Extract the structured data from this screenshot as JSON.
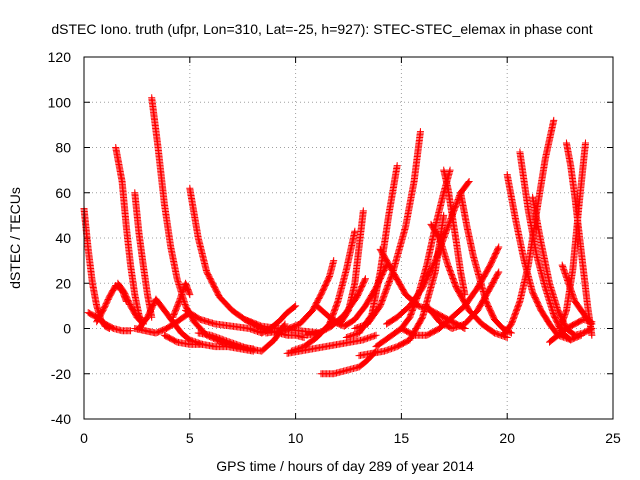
{
  "chart_data": {
    "type": "scatter",
    "title": "dSTEC Iono. truth (ufpr, Lon=310, Lat=-25, h=927): STEC-STEC_elemax in phase cont",
    "xlabel": "GPS time / hours of day 289 of year 2014",
    "ylabel": "dSTEC  / TECUs",
    "xlim": [
      0,
      25
    ],
    "ylim": [
      -40,
      120
    ],
    "xticks": [
      0,
      5,
      10,
      15,
      20,
      25
    ],
    "yticks": [
      -40,
      -20,
      0,
      20,
      40,
      60,
      80,
      100,
      120
    ],
    "grid": true,
    "marker": "+",
    "series_color": "#ff0000",
    "series": [
      {
        "x": [
          0.0,
          0.2,
          0.4,
          0.6,
          0.8,
          1.0,
          1.2
        ],
        "y": [
          53,
          35,
          20,
          10,
          4,
          1,
          0
        ]
      },
      {
        "x": [
          0.2,
          0.6,
          1.0,
          1.4,
          1.8,
          2.2
        ],
        "y": [
          7,
          5,
          2,
          0,
          -1,
          -1
        ]
      },
      {
        "x": [
          0.6,
          0.9,
          1.2,
          1.5,
          1.8,
          2.0
        ],
        "y": [
          3,
          8,
          14,
          19,
          17,
          12
        ]
      },
      {
        "x": [
          1.5,
          1.8,
          2.0,
          2.2,
          2.4,
          2.6,
          2.8
        ],
        "y": [
          80,
          65,
          45,
          28,
          15,
          6,
          2
        ]
      },
      {
        "x": [
          1.6,
          1.9,
          2.2,
          2.5,
          2.8
        ],
        "y": [
          20,
          16,
          10,
          5,
          2
        ]
      },
      {
        "x": [
          2.4,
          2.6,
          2.8,
          3.0,
          3.2
        ],
        "y": [
          60,
          42,
          28,
          15,
          5
        ]
      },
      {
        "x": [
          2.4,
          2.9,
          3.4,
          3.9,
          4.4,
          5.0
        ],
        "y": [
          0,
          -1,
          -2,
          0,
          3,
          7
        ]
      },
      {
        "x": [
          2.6,
          3.0,
          3.4,
          3.8,
          4.2,
          4.6,
          5.0,
          5.6
        ],
        "y": [
          0,
          5,
          13,
          8,
          3,
          -2,
          -5,
          -7
        ]
      },
      {
        "x": [
          3.2,
          3.5,
          3.8,
          4.1,
          4.4,
          4.8,
          5.2,
          5.8,
          6.5,
          7.2,
          8.0
        ],
        "y": [
          102,
          80,
          55,
          36,
          22,
          10,
          3,
          -3,
          -6,
          -8,
          -9
        ]
      },
      {
        "x": [
          3.8,
          4.4,
          5.0,
          5.6,
          6.2,
          6.8,
          7.4,
          8.0
        ],
        "y": [
          -3,
          -6,
          -7,
          -7,
          -8,
          -8,
          -9,
          -10
        ]
      },
      {
        "x": [
          4.2,
          4.5,
          4.8,
          5.0
        ],
        "y": [
          5,
          12,
          20,
          15
        ]
      },
      {
        "x": [
          5.0,
          5.4,
          5.8,
          6.4,
          7.0,
          7.6,
          8.4,
          9.2,
          10.2,
          11.2
        ],
        "y": [
          62,
          40,
          25,
          14,
          8,
          4,
          1,
          0,
          -1,
          -2
        ]
      },
      {
        "x": [
          4.8,
          5.5,
          6.2,
          7.0,
          7.8,
          8.4
        ],
        "y": [
          8,
          4,
          2,
          1,
          0,
          -2
        ]
      },
      {
        "x": [
          5.4,
          6.0,
          6.6,
          7.2,
          7.8,
          8.4,
          9.0,
          9.5
        ],
        "y": [
          -2,
          -3,
          -5,
          -7,
          -9,
          -10,
          -5,
          2
        ]
      },
      {
        "x": [
          7.6,
          8.0,
          8.4,
          8.8,
          9.2,
          9.6,
          10.0,
          10.4
        ],
        "y": [
          4,
          2,
          0,
          -1,
          -2,
          -3,
          -3,
          -4
        ]
      },
      {
        "x": [
          8.4,
          8.8,
          9.2,
          9.6,
          10.0
        ],
        "y": [
          -2,
          0,
          3,
          7,
          10
        ]
      },
      {
        "x": [
          9.6,
          10.2,
          10.8,
          11.4,
          12.0,
          12.6,
          13.2,
          13.8
        ],
        "y": [
          -11,
          -10,
          -9,
          -8,
          -7,
          -6,
          -5,
          -3
        ]
      },
      {
        "x": [
          8.6,
          9.4,
          10.2,
          10.8,
          11.2,
          11.6,
          11.8
        ],
        "y": [
          -2,
          -1,
          2,
          8,
          15,
          23,
          30
        ]
      },
      {
        "x": [
          9.8,
          10.4,
          11.0,
          11.6,
          12.0,
          12.4,
          12.8
        ],
        "y": [
          -10,
          -8,
          -4,
          2,
          12,
          26,
          43
        ]
      },
      {
        "x": [
          10.5,
          11.1,
          11.7,
          12.3,
          12.9,
          13.3
        ],
        "y": [
          -3,
          -2,
          1,
          6,
          14,
          22
        ]
      },
      {
        "x": [
          11.2,
          11.8,
          12.2,
          12.6,
          13.0,
          13.4,
          13.8
        ],
        "y": [
          -20,
          -20,
          -19,
          -18,
          -17,
          -14,
          -10
        ]
      },
      {
        "x": [
          11.0,
          11.6,
          12.1,
          12.5,
          12.8,
          13.2
        ],
        "y": [
          10,
          5,
          2,
          8,
          20,
          52
        ]
      },
      {
        "x": [
          11.8,
          12.3,
          12.8,
          13.3,
          13.8,
          14.3
        ],
        "y": [
          3,
          1,
          4,
          10,
          18,
          28
        ]
      },
      {
        "x": [
          12.4,
          13.0,
          13.6,
          14.0,
          14.4,
          14.8
        ],
        "y": [
          -4,
          -2,
          6,
          25,
          50,
          72
        ]
      },
      {
        "x": [
          12.8,
          13.4,
          14.0,
          14.6,
          15.2,
          15.6,
          15.9
        ],
        "y": [
          0,
          2,
          10,
          25,
          45,
          65,
          87
        ]
      },
      {
        "x": [
          13.0,
          13.6,
          14.2,
          14.8,
          15.4,
          16.0,
          16.6,
          17.0
        ],
        "y": [
          -12,
          -11,
          -10,
          -8,
          -5,
          5,
          25,
          50
        ]
      },
      {
        "x": [
          13.8,
          14.4,
          15.0,
          15.4,
          15.8,
          16.2,
          16.6,
          17.0,
          17.3
        ],
        "y": [
          -8,
          -4,
          0,
          5,
          15,
          28,
          45,
          60,
          70
        ]
      },
      {
        "x": [
          14.0,
          14.6,
          15.2,
          15.8,
          16.4,
          17.0,
          17.6,
          18.0
        ],
        "y": [
          35,
          25,
          15,
          10,
          8,
          5,
          2,
          0
        ]
      },
      {
        "x": [
          14.3,
          14.8,
          15.4,
          16.0,
          16.6,
          17.2,
          17.8,
          18.2
        ],
        "y": [
          2,
          5,
          10,
          18,
          30,
          45,
          60,
          65
        ]
      },
      {
        "x": [
          15.0,
          15.6,
          16.2,
          16.8,
          17.4,
          18.0,
          18.6,
          19.2,
          19.6
        ],
        "y": [
          0,
          -3,
          -3,
          0,
          5,
          10,
          18,
          28,
          36
        ]
      },
      {
        "x": [
          16.2,
          16.8,
          17.4,
          18.0,
          18.6,
          19.2,
          19.6
        ],
        "y": [
          10,
          3,
          0,
          2,
          8,
          18,
          25
        ]
      },
      {
        "x": [
          16.4,
          16.8,
          17.2,
          17.6,
          18.2,
          18.8,
          19.4,
          20.0
        ],
        "y": [
          46,
          40,
          28,
          18,
          8,
          2,
          -2,
          -4
        ]
      },
      {
        "x": [
          17.0,
          17.2,
          17.4,
          17.6,
          17.8,
          18.0
        ],
        "y": [
          70,
          62,
          50,
          38,
          25,
          15
        ]
      },
      {
        "x": [
          17.8,
          18.1,
          18.4,
          18.7,
          19.0,
          19.4,
          19.8,
          20.2
        ],
        "y": [
          60,
          45,
          32,
          22,
          12,
          4,
          0,
          -2
        ]
      },
      {
        "x": [
          19.8,
          20.2,
          20.6,
          21.0,
          21.4,
          21.8,
          22.2
        ],
        "y": [
          -3,
          2,
          12,
          28,
          52,
          75,
          92
        ]
      },
      {
        "x": [
          20.0,
          20.4,
          20.8,
          21.2,
          21.6,
          22.0,
          22.4,
          23.0
        ],
        "y": [
          68,
          48,
          30,
          16,
          8,
          2,
          -3,
          -5
        ]
      },
      {
        "x": [
          20.6,
          21.0,
          21.4,
          21.8,
          22.2,
          22.6,
          23.0,
          23.5
        ],
        "y": [
          78,
          52,
          32,
          18,
          6,
          -2,
          -5,
          -3
        ]
      },
      {
        "x": [
          21.2,
          21.6,
          22.0,
          22.4,
          22.8,
          23.2,
          23.6,
          24.0
        ],
        "y": [
          58,
          38,
          20,
          8,
          0,
          -3,
          -2,
          0
        ]
      },
      {
        "x": [
          22.0,
          22.4,
          22.8,
          23.2,
          23.6,
          24.0
        ],
        "y": [
          -6,
          -3,
          0,
          2,
          4,
          3
        ]
      },
      {
        "x": [
          22.6,
          22.9,
          23.2,
          23.5,
          23.8,
          24.0
        ],
        "y": [
          28,
          20,
          12,
          8,
          4,
          2
        ]
      },
      {
        "x": [
          22.8,
          23.0,
          23.2,
          23.4,
          23.6,
          23.8,
          24.0
        ],
        "y": [
          82,
          72,
          58,
          42,
          26,
          10,
          -3
        ]
      },
      {
        "x": [
          22.5,
          22.8,
          23.1,
          23.4,
          23.7
        ],
        "y": [
          0,
          8,
          26,
          55,
          82
        ]
      }
    ]
  }
}
